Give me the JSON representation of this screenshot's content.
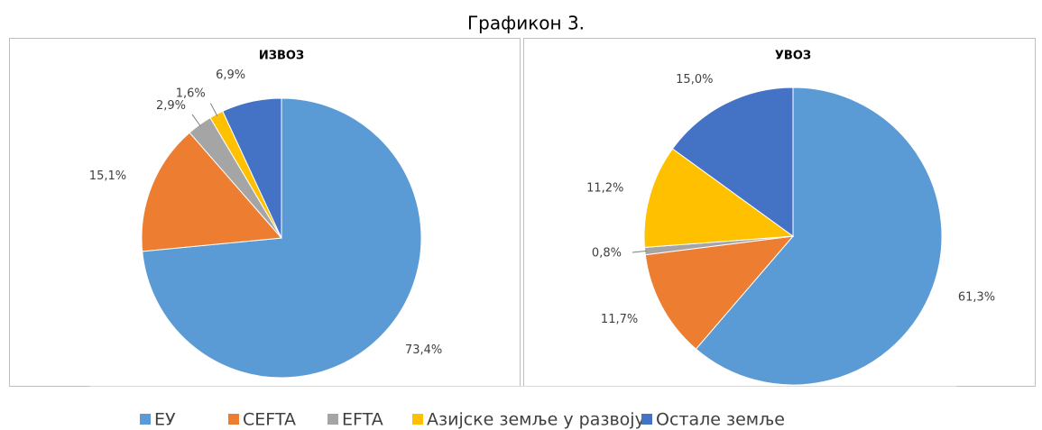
{
  "caption": "Графикон 3.",
  "chart_data": [
    {
      "type": "pie",
      "title": "ИЗВОЗ",
      "categories": [
        "ЕУ",
        "CEFTA",
        "EFTA",
        "Азијске земље у развоју",
        "Остале земље"
      ],
      "values": [
        73.4,
        15.1,
        2.9,
        1.6,
        6.9
      ],
      "value_labels": [
        "73,4%",
        "15,1%",
        "2,9%",
        "1,6%",
        "6,9%"
      ],
      "colors": [
        "#5b9bd5",
        "#ed7d31",
        "#a5a5a5",
        "#ffc000",
        "#4472c4"
      ]
    },
    {
      "type": "pie",
      "title": "УВОЗ",
      "categories": [
        "ЕУ",
        "CEFTA",
        "EFTA",
        "Азијске земље у развоју",
        "Остале земље"
      ],
      "values": [
        61.3,
        11.7,
        0.8,
        11.2,
        15.0
      ],
      "value_labels": [
        "61,3%",
        "11,7%",
        "0,8%",
        "11,2%",
        "15,0%"
      ],
      "colors": [
        "#5b9bd5",
        "#ed7d31",
        "#a5a5a5",
        "#ffc000",
        "#4472c4"
      ]
    }
  ]
}
